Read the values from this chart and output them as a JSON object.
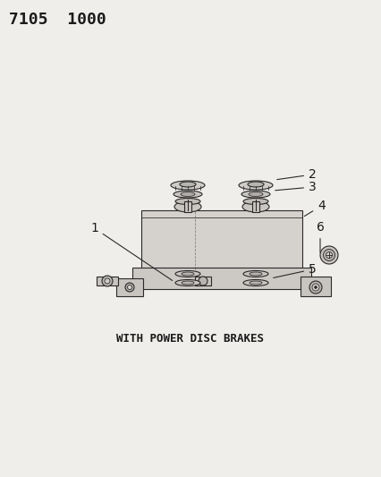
{
  "title_code": "7105  1000",
  "caption": "WITH POWER DISC BRAKES",
  "bg_color": "#f0eeeb",
  "line_color": "#2a2a2a",
  "label_color": "#1a1a1a",
  "part_labels": [
    "1",
    "2",
    "3",
    "4",
    "5",
    "6"
  ],
  "title_fontsize": 13,
  "caption_fontsize": 9,
  "label_fontsize": 10,
  "figsize": [
    4.27,
    5.33
  ],
  "dpi": 100
}
